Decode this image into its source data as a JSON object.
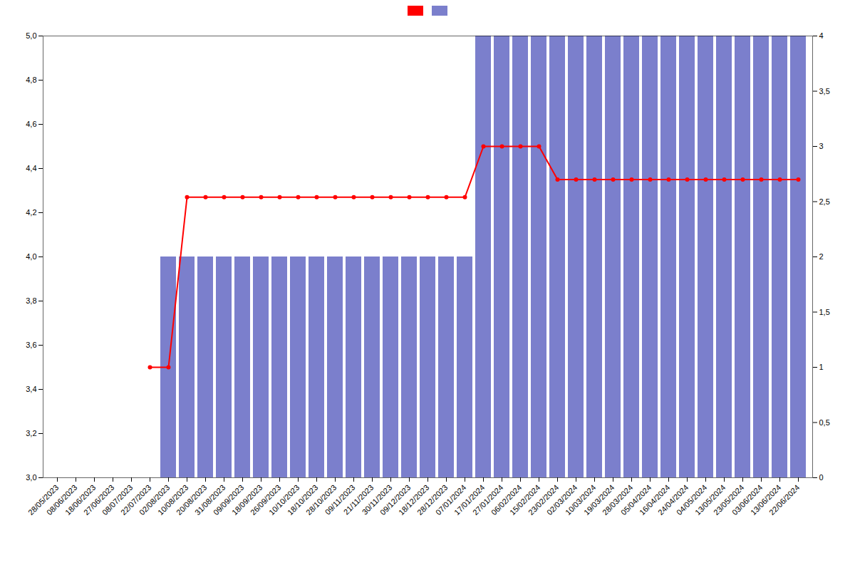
{
  "chart_data": {
    "type": "bar",
    "categories": [
      "28/05/2023",
      "08/06/2023",
      "18/06/2023",
      "27/06/2023",
      "08/07/2023",
      "22/07/2023",
      "02/08/2023",
      "10/08/2023",
      "20/08/2023",
      "31/08/2023",
      "09/09/2023",
      "18/09/2023",
      "26/09/2023",
      "10/10/2023",
      "18/10/2023",
      "28/10/2023",
      "09/11/2023",
      "21/11/2023",
      "30/11/2023",
      "09/12/2023",
      "18/12/2023",
      "28/12/2023",
      "07/01/2024",
      "17/01/2024",
      "27/01/2024",
      "06/02/2024",
      "15/02/2024",
      "23/02/2024",
      "02/03/2024",
      "10/03/2024",
      "19/03/2024",
      "28/03/2024",
      "05/04/2024",
      "16/04/2024",
      "24/04/2024",
      "04/05/2024",
      "13/05/2024",
      "23/05/2024",
      "03/06/2024",
      "13/06/2024",
      "22/06/2024"
    ],
    "series": [
      {
        "type": "bar",
        "color": "#7B7FCC",
        "values": [
          null,
          null,
          null,
          null,
          null,
          null,
          4.0,
          4.0,
          4.0,
          4.0,
          4.0,
          4.0,
          4.0,
          4.0,
          4.0,
          4.0,
          4.0,
          4.0,
          4.0,
          4.0,
          4.0,
          4.0,
          4.0,
          5.0,
          5.0,
          5.0,
          5.0,
          5.0,
          5.0,
          5.0,
          5.0,
          5.0,
          5.0,
          5.0,
          5.0,
          5.0,
          5.0,
          5.0,
          5.0,
          5.0,
          5.0
        ]
      },
      {
        "type": "line",
        "color": "#FF0000",
        "marker": "circle",
        "values": [
          null,
          null,
          null,
          null,
          null,
          3.5,
          3.5,
          4.27,
          4.27,
          4.27,
          4.27,
          4.27,
          4.27,
          4.27,
          4.27,
          4.27,
          4.27,
          4.27,
          4.27,
          4.27,
          4.27,
          4.27,
          4.27,
          4.5,
          4.5,
          4.5,
          4.5,
          4.35,
          4.35,
          4.35,
          4.35,
          4.35,
          4.35,
          4.35,
          4.35,
          4.35,
          4.35,
          4.35,
          4.35,
          4.35,
          4.35
        ]
      }
    ],
    "ylim": [
      3.0,
      5.0
    ],
    "yticks": [
      {
        "value": 3.0,
        "label": "3,0"
      },
      {
        "value": 3.2,
        "label": "3,2"
      },
      {
        "value": 3.4,
        "label": "3,4"
      },
      {
        "value": 3.6,
        "label": "3,6"
      },
      {
        "value": 3.8,
        "label": "3,8"
      },
      {
        "value": 4.0,
        "label": "4,0"
      },
      {
        "value": 4.2,
        "label": "4,2"
      },
      {
        "value": 4.4,
        "label": "4,4"
      },
      {
        "value": 4.6,
        "label": "4,6"
      },
      {
        "value": 4.8,
        "label": "4,8"
      },
      {
        "value": 5.0,
        "label": "5,0"
      }
    ],
    "y2lim": [
      0,
      4.0
    ],
    "y2ticks": [
      0,
      {
        "value": 0.5,
        "label": "0,5"
      },
      1,
      {
        "value": 1.5,
        "label": "1,5"
      },
      2,
      {
        "value": 2.5,
        "label": "2,5"
      },
      3,
      {
        "value": 3.5,
        "label": "3,5"
      },
      4
    ],
    "legend": "top",
    "grid": false
  }
}
